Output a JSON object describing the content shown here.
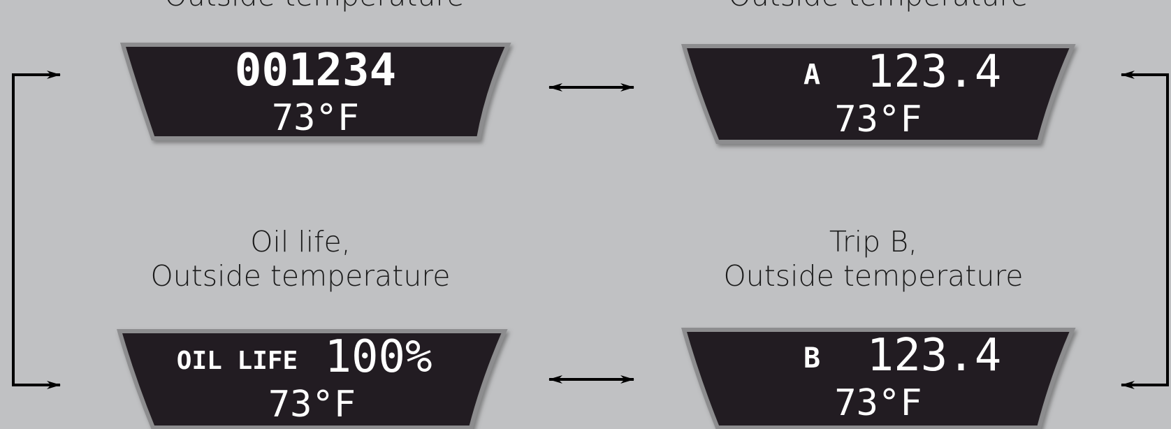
{
  "panels": [
    {
      "caption": [
        "Outside temperature"
      ],
      "display": {
        "value": "001234",
        "temperature": "73°F"
      }
    },
    {
      "caption": [
        "Outside temperature"
      ],
      "display": {
        "label": "A",
        "value": "123.4",
        "temperature": "73°F"
      }
    },
    {
      "caption": [
        "Oil life,",
        "Outside temperature"
      ],
      "display": {
        "label": "OIL LIFE",
        "value": "100%",
        "temperature": "73°F"
      }
    },
    {
      "caption": [
        "Trip B,",
        "Outside temperature"
      ],
      "display": {
        "label": "B",
        "value": "123.4",
        "temperature": "73°F"
      }
    }
  ]
}
